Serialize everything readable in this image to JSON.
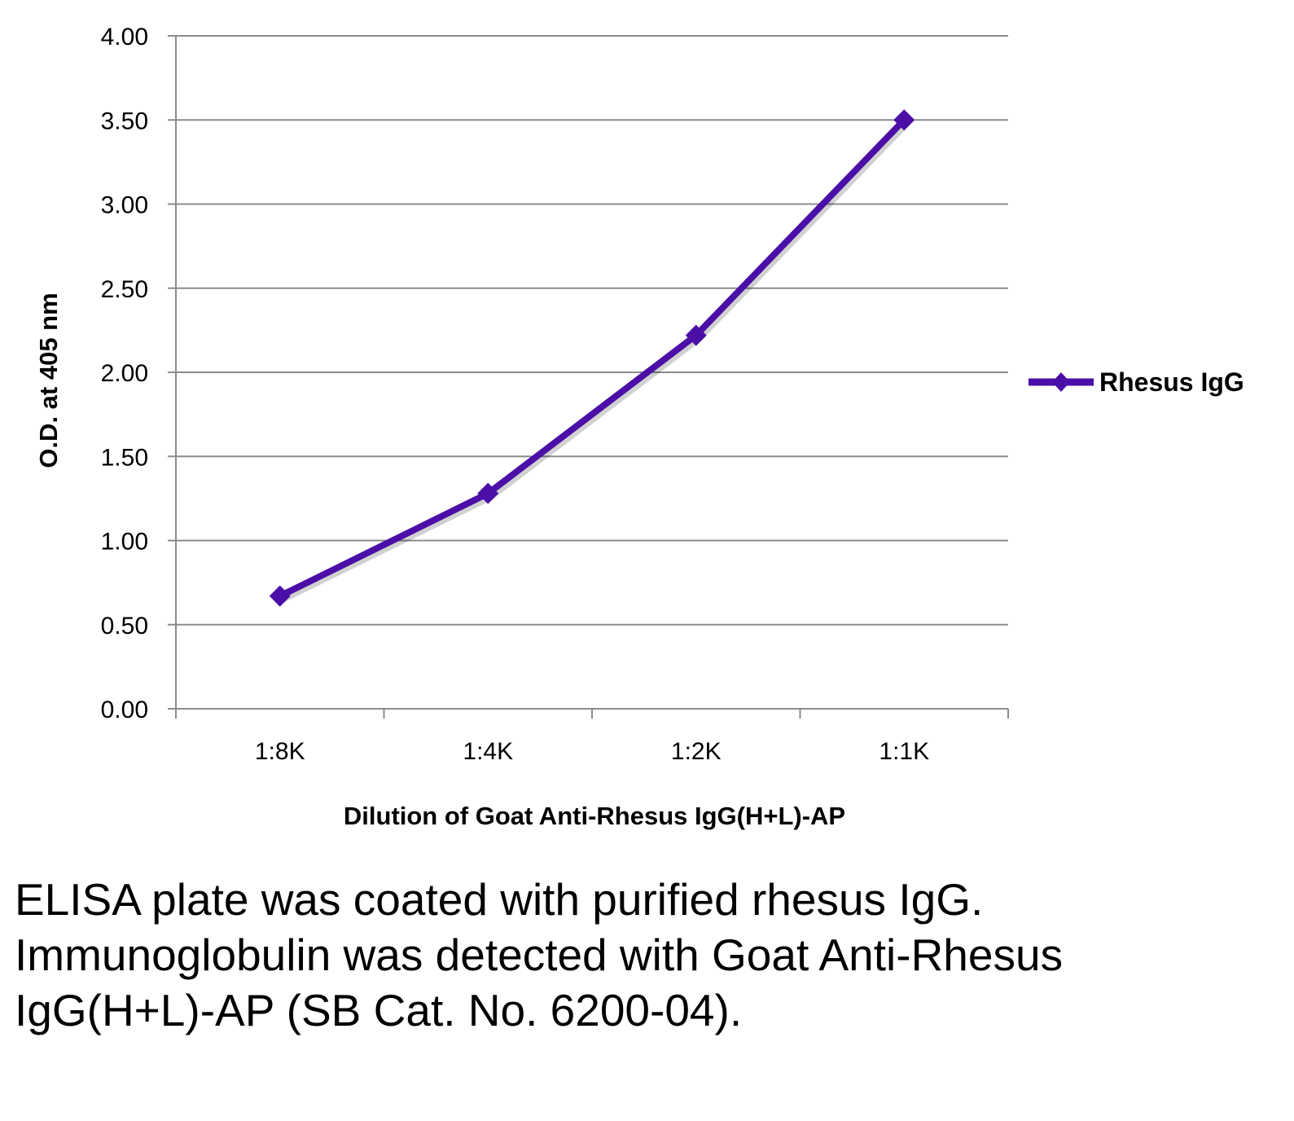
{
  "chart_data": {
    "type": "line",
    "categories": [
      "1:8K",
      "1:4K",
      "1:2K",
      "1:1K"
    ],
    "series": [
      {
        "name": "Rhesus IgG",
        "values": [
          0.67,
          1.28,
          2.22,
          3.5
        ],
        "color": "#4b0fa8",
        "marker": "diamond"
      }
    ],
    "xlabel": "Dilution of Goat Anti-Rhesus IgG(H+L)-AP",
    "ylabel": "O.D. at 405 nm",
    "ylim": [
      0,
      4
    ],
    "yticks": [
      "0.00",
      "0.50",
      "1.00",
      "1.50",
      "2.00",
      "2.50",
      "3.00",
      "3.50",
      "4.00"
    ],
    "grid": "horizontal",
    "legend": "right"
  },
  "caption": "ELISA plate was coated with purified rhesus IgG.  Immunoglobulin was detected with Goat Anti-Rhesus IgG(H+L)-AP (SB Cat. No. 6200-04)."
}
